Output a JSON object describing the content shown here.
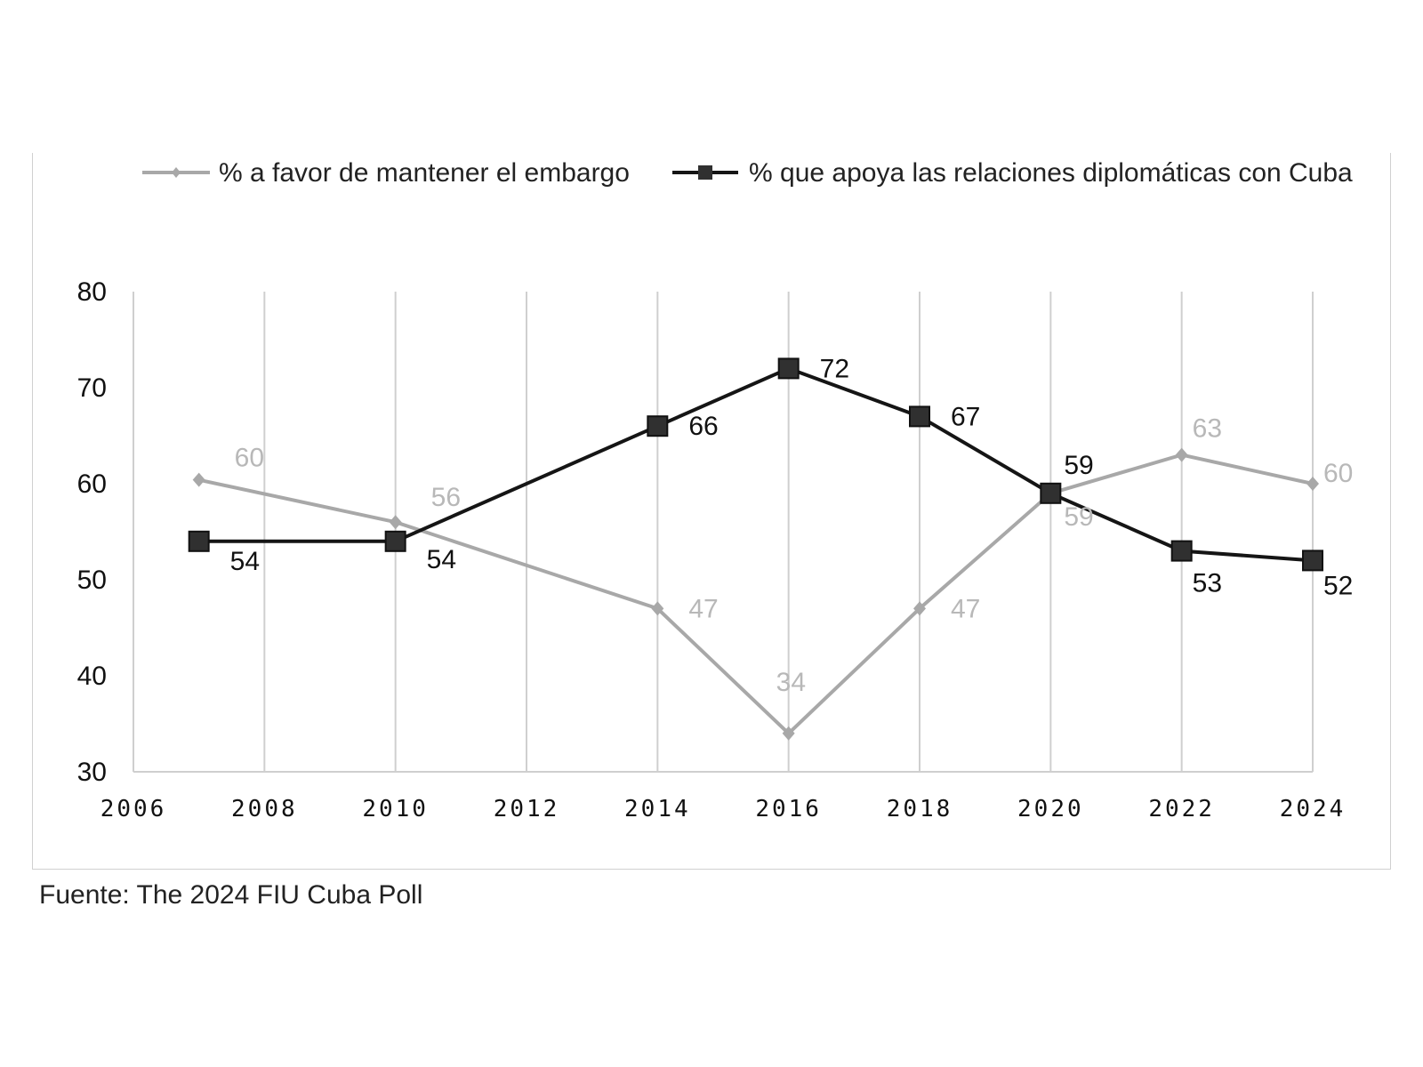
{
  "source_note": "Fuente: The 2024 FIU Cuba Poll",
  "chart_data": {
    "type": "line",
    "title": "",
    "xlabel": "",
    "ylabel": "",
    "xlim": [
      2006,
      2024
    ],
    "ylim": [
      30,
      80
    ],
    "x_ticks": [
      "2006",
      "2008",
      "2010",
      "2012",
      "2014",
      "2016",
      "2018",
      "2020",
      "2022",
      "2024"
    ],
    "y_ticks": [
      "30",
      "40",
      "50",
      "60",
      "70",
      "80"
    ],
    "grid": "vertical",
    "legend_position": "top",
    "series": [
      {
        "name": "% a favor de mantener el embargo",
        "color": "#a8a8a8",
        "marker": "diamond",
        "points": [
          {
            "x": 2007,
            "y": 60.4,
            "label": "60"
          },
          {
            "x": 2010,
            "y": 56,
            "label": "56"
          },
          {
            "x": 2014,
            "y": 47,
            "label": "47"
          },
          {
            "x": 2016,
            "y": 34,
            "label": "34"
          },
          {
            "x": 2018,
            "y": 47,
            "label": "47"
          },
          {
            "x": 2020,
            "y": 59,
            "label": "59"
          },
          {
            "x": 2022,
            "y": 63,
            "label": "63"
          },
          {
            "x": 2024,
            "y": 60,
            "label": "60"
          }
        ]
      },
      {
        "name": "% que apoya las relaciones diplomáticas con Cuba",
        "color": "#151515",
        "marker": "square",
        "points": [
          {
            "x": 2007,
            "y": 54,
            "label": "54"
          },
          {
            "x": 2010,
            "y": 54,
            "label": "54"
          },
          {
            "x": 2014,
            "y": 66,
            "label": "66"
          },
          {
            "x": 2016,
            "y": 72,
            "label": "72"
          },
          {
            "x": 2018,
            "y": 67,
            "label": "67"
          },
          {
            "x": 2020,
            "y": 59,
            "label": "59"
          },
          {
            "x": 2022,
            "y": 53,
            "label": "53"
          },
          {
            "x": 2024,
            "y": 52,
            "label": "52"
          }
        ]
      }
    ]
  }
}
